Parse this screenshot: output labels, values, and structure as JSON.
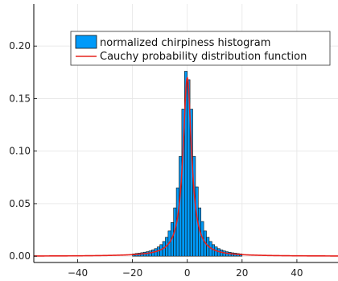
{
  "chart_data": {
    "type": "bar",
    "title": "",
    "xlabel": "",
    "ylabel": "",
    "xlim": [
      -56,
      55
    ],
    "ylim": [
      -0.006,
      0.24
    ],
    "grid": true,
    "legend_position": "top-right",
    "x_ticks": [
      {
        "value": -40,
        "label": "−40"
      },
      {
        "value": -20,
        "label": "−20"
      },
      {
        "value": 0,
        "label": "0"
      },
      {
        "value": 20,
        "label": "20"
      },
      {
        "value": 40,
        "label": "40"
      }
    ],
    "y_ticks": [
      {
        "value": 0.0,
        "label": "0.00"
      },
      {
        "value": 0.05,
        "label": "0.05"
      },
      {
        "value": 0.1,
        "label": "0.10"
      },
      {
        "value": 0.15,
        "label": "0.15"
      },
      {
        "value": 0.2,
        "label": "0.20"
      }
    ],
    "histogram": {
      "name": "normalized chirpiness histogram",
      "color": "#009af9",
      "bin_width": 1,
      "bin_starts": [
        -20,
        -19,
        -18,
        -17,
        -16,
        -15,
        -14,
        -13,
        -12,
        -11,
        -10,
        -9,
        -8,
        -7,
        -6,
        -5,
        -4,
        -3,
        -2,
        -1,
        0,
        1,
        2,
        3,
        4,
        5,
        6,
        7,
        8,
        9,
        10,
        11,
        12,
        13,
        14,
        15,
        16,
        17,
        18,
        19
      ],
      "density": [
        0.0022,
        0.0026,
        0.0029,
        0.0033,
        0.0038,
        0.0043,
        0.005,
        0.006,
        0.0072,
        0.0088,
        0.011,
        0.014,
        0.018,
        0.024,
        0.032,
        0.046,
        0.065,
        0.095,
        0.14,
        0.176,
        0.168,
        0.14,
        0.095,
        0.066,
        0.046,
        0.033,
        0.024,
        0.018,
        0.014,
        0.011,
        0.0088,
        0.0072,
        0.006,
        0.005,
        0.0042,
        0.0037,
        0.0032,
        0.0029,
        0.0025,
        0.0022
      ]
    },
    "pdf": {
      "name": "Cauchy probability distribution function",
      "color": "#e6231f",
      "type": "line",
      "location": 0,
      "scale": 1.87
    }
  }
}
